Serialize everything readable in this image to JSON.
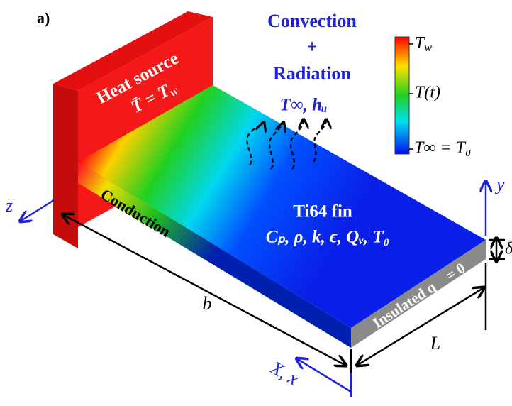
{
  "panel_label": "a)",
  "heat_source": {
    "title": "Heat source",
    "equation": {
      "base": "T̄ = T",
      "sub": "w"
    }
  },
  "boundary": {
    "convection": "Convection",
    "plus": "+",
    "radiation": "Radiation",
    "params": "T∞, hᵤ"
  },
  "colorbar": {
    "top": {
      "base": "T",
      "sub": "w"
    },
    "middle": "T(t)",
    "bottom": "T∞ = T₀"
  },
  "conduction": "Conduction",
  "fin": {
    "label": "Ti64 fin",
    "properties": "Cₚ, ρ, k, ϵ, Qᵥ, T₀"
  },
  "insulated": "Insulated q⃗ = 0",
  "dimensions": {
    "b": "b",
    "L": "L",
    "delta": "δ"
  },
  "axes": {
    "x": "X, x",
    "y": "y",
    "z": "z"
  }
}
